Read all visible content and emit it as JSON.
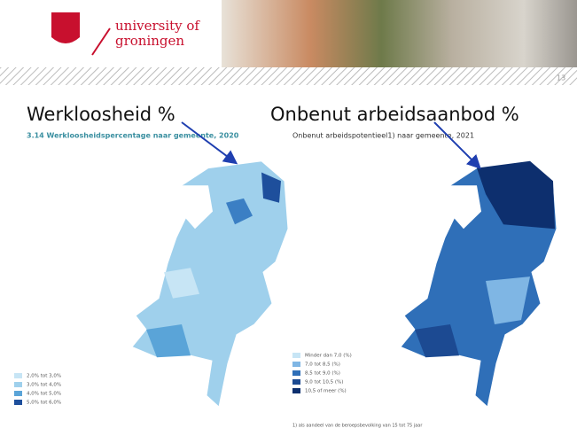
{
  "header": {
    "logo_line1": "university of",
    "logo_line2": "groningen",
    "page_number": "13"
  },
  "labels": {
    "left": "Werkloosheid %",
    "right": "Onbenut arbeidsaanbod %"
  },
  "left_map": {
    "title": "3.14  Werkloosheidspercentage naar gemeente, 2020",
    "legend": [
      "2,0% tot 3,0%",
      "3,0% tot 4,0%",
      "4,0% tot 5,0%",
      "5,0% tot 6,0%"
    ]
  },
  "right_map": {
    "title": "Onbenut arbeidspotentieel1) naar gemeente, 2021",
    "legend": [
      "Minder dan 7,0 (%)",
      "7,0 tot 8,5 (%)",
      "8,5 tot 9,0 (%)",
      "9,0 tot 10,5 (%)",
      "10,5 of meer (%)"
    ],
    "footnote": "1) als aandeel van de beroepsbevolking van 15 tot 75 jaar"
  }
}
